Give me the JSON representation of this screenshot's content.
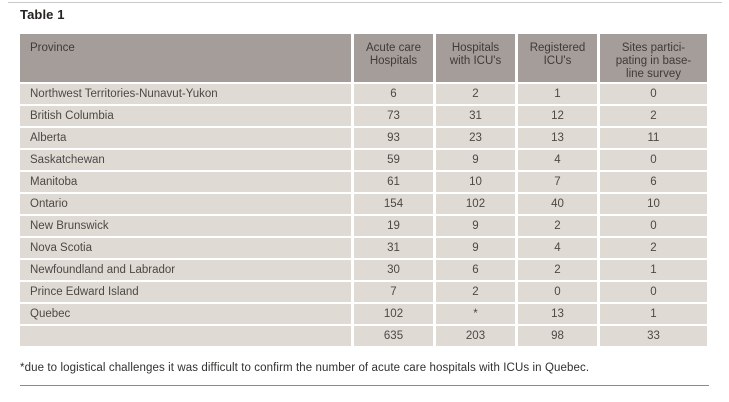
{
  "title": "Table 1",
  "colors": {
    "header_bg": "#a49d99",
    "row_bg": "#dfdbd4",
    "header_text": "#3f3b38",
    "body_text": "#4c4845",
    "rule_top": "#c9c9c9",
    "rule_bottom": "#8c8c8c"
  },
  "table": {
    "columns": [
      "Province",
      "Acute care\nHospitals",
      "Hospitals\nwith ICU's",
      "Registered\nICU's",
      "Sites partici-\npating in base-\nline survey"
    ],
    "rows": [
      {
        "province": "Northwest Territories-Nunavut-Yukon",
        "values": [
          "6",
          "2",
          "1",
          "0"
        ]
      },
      {
        "province": "British Columbia",
        "values": [
          "73",
          "31",
          "12",
          "2"
        ]
      },
      {
        "province": "Alberta",
        "values": [
          "93",
          "23",
          "13",
          "11"
        ]
      },
      {
        "province": "Saskatchewan",
        "values": [
          "59",
          "9",
          "4",
          "0"
        ]
      },
      {
        "province": "Manitoba",
        "values": [
          "61",
          "10",
          "7",
          "6"
        ]
      },
      {
        "province": "Ontario",
        "values": [
          "154",
          "102",
          "40",
          "10"
        ]
      },
      {
        "province": "New Brunswick",
        "values": [
          "19",
          "9",
          "2",
          "0"
        ]
      },
      {
        "province": "Nova Scotia",
        "values": [
          "31",
          "9",
          "4",
          "2"
        ]
      },
      {
        "province": "Newfoundland and Labrador",
        "values": [
          "30",
          "6",
          "2",
          "1"
        ]
      },
      {
        "province": "Prince Edward Island",
        "values": [
          "7",
          "2",
          "0",
          "0"
        ]
      },
      {
        "province": "Quebec",
        "values": [
          "102",
          "*",
          "13",
          "1"
        ]
      },
      {
        "province": "",
        "values": [
          "635",
          "203",
          "98",
          "33"
        ]
      }
    ]
  },
  "footnote": "*due to logistical challenges it was difficult to confirm the number of acute care hospitals with ICUs in Quebec."
}
